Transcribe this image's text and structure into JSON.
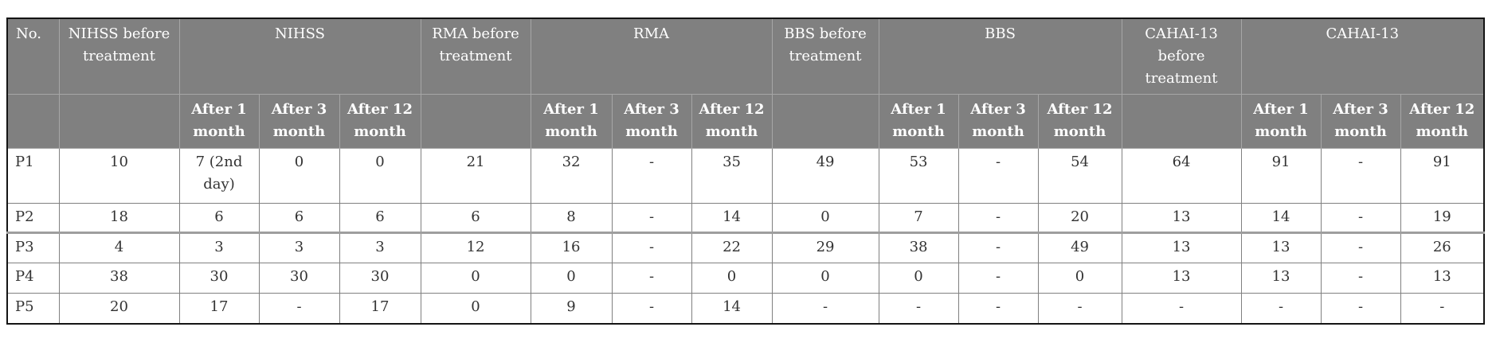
{
  "colors": {
    "header_bg": "#808080",
    "header_text": "#ffffff",
    "header_inner_border": "#a6a6a6",
    "body_border": "#808080",
    "outer_border": "#141414",
    "thick_row_border": "#9e9e9e",
    "body_text": "#333333"
  },
  "table": {
    "header": {
      "no": "No.",
      "groups": [
        {
          "before": "NIHSS before treatment",
          "name": "NIHSS"
        },
        {
          "before": "RMA before treatment",
          "name": "RMA"
        },
        {
          "before": "BBS before treatment",
          "name": "BBS"
        },
        {
          "before": "CAHAI-13 before treatment",
          "name": "CAHAI-13"
        }
      ],
      "sub": [
        "After 1 month",
        "After 3 month",
        "After 12 month"
      ]
    },
    "rows": [
      {
        "cells": [
          "P1",
          "10",
          "7 (2nd day)",
          "0",
          "0",
          "21",
          "32",
          "-",
          "35",
          "49",
          "53",
          "-",
          "54",
          "64",
          "91",
          "-",
          "91"
        ]
      },
      {
        "cells": [
          "P2",
          "18",
          "6",
          "6",
          "6",
          "6",
          "8",
          "-",
          "14",
          "0",
          "7",
          "-",
          "20",
          "13",
          "14",
          "-",
          "19"
        ]
      },
      {
        "cells": [
          "P3",
          "4",
          "3",
          "3",
          "3",
          "12",
          "16",
          "-",
          "22",
          "29",
          "38",
          "-",
          "49",
          "13",
          "13",
          "-",
          "26"
        ]
      },
      {
        "cells": [
          "P4",
          "38",
          "30",
          "30",
          "30",
          "0",
          "0",
          "-",
          "0",
          "0",
          "0",
          "-",
          "0",
          "13",
          "13",
          "-",
          "13"
        ]
      },
      {
        "cells": [
          "P5",
          "20",
          "17",
          "-",
          "17",
          "0",
          "9",
          "-",
          "14",
          "-",
          "-",
          "-",
          "-",
          "-",
          "-",
          "-",
          "-"
        ]
      }
    ]
  }
}
